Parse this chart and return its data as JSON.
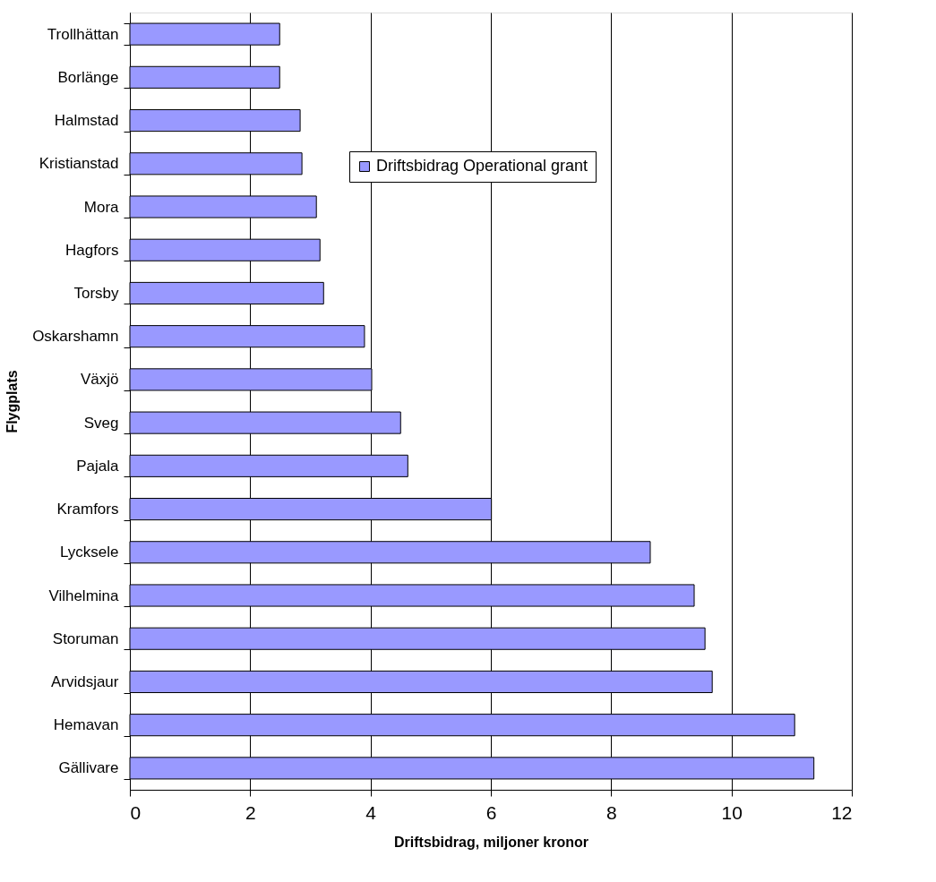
{
  "chart_data": {
    "type": "bar",
    "orientation": "horizontal",
    "xlabel": "Driftsbidrag, miljoner kronor",
    "ylabel": "Flygplats",
    "categories": [
      "Trollhättan",
      "Borlänge",
      "Halmstad",
      "Kristianstad",
      "Mora",
      "Hagfors",
      "Torsby",
      "Oskarshamn",
      "Växjö",
      "Sveg",
      "Pajala",
      "Kramfors",
      "Lycksele",
      "Vilhelmina",
      "Storuman",
      "Arvidsjaur",
      "Hemavan",
      "Gällivare"
    ],
    "series": [
      {
        "name": "Driftsbidrag Operational grant",
        "color": "#9999ff",
        "values": [
          2.49,
          2.49,
          2.83,
          2.86,
          3.1,
          3.16,
          3.22,
          3.9,
          4.02,
          4.5,
          4.62,
          6.01,
          8.65,
          9.38,
          9.56,
          9.68,
          11.05,
          11.37
        ]
      }
    ],
    "xlim": [
      0,
      12
    ],
    "xticks": [
      0,
      2,
      4,
      6,
      8,
      10,
      12
    ],
    "grid": "x",
    "legend": "top right"
  }
}
